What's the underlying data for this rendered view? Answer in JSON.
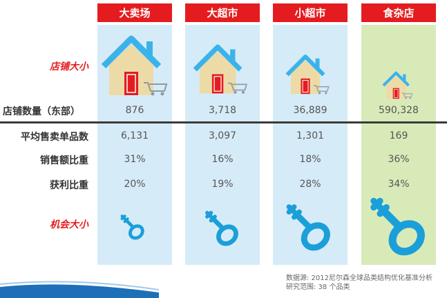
{
  "colors": {
    "header_red": "#e51c1f",
    "col_blue": "#d6ebf8",
    "col_green": "#d9eab9",
    "key_blue": "#1a9fd9",
    "label_red": "#e51c1f"
  },
  "columns": [
    {
      "name": "大卖场",
      "store_count": "876",
      "avg_sku": "6,131",
      "sales_share": "31%",
      "profit_share": "20%"
    },
    {
      "name": "大超市",
      "store_count": "3,718",
      "avg_sku": "3,097",
      "sales_share": "16%",
      "profit_share": "19%"
    },
    {
      "name": "小超市",
      "store_count": "36,889",
      "avg_sku": "1,301",
      "sales_share": "18%",
      "profit_share": "28%"
    },
    {
      "name": "食杂店",
      "store_count": "590,328",
      "avg_sku": "169",
      "sales_share": "36%",
      "profit_share": "34%"
    }
  ],
  "row_labels": {
    "store_size": "店铺大小",
    "store_count": "店铺数量（东部）",
    "avg_sku": "平均售卖单品数",
    "sales_share": "销售额比重",
    "profit_share": "获利比重",
    "opportunity": "机会大小"
  },
  "source": {
    "line1": "数据源: 2012尼尔森全球品类结构优化基准分析",
    "line2": "研究范围: 38 个品类"
  },
  "icons": {
    "house": "house-with-cart-icon",
    "key": "key-icon"
  }
}
